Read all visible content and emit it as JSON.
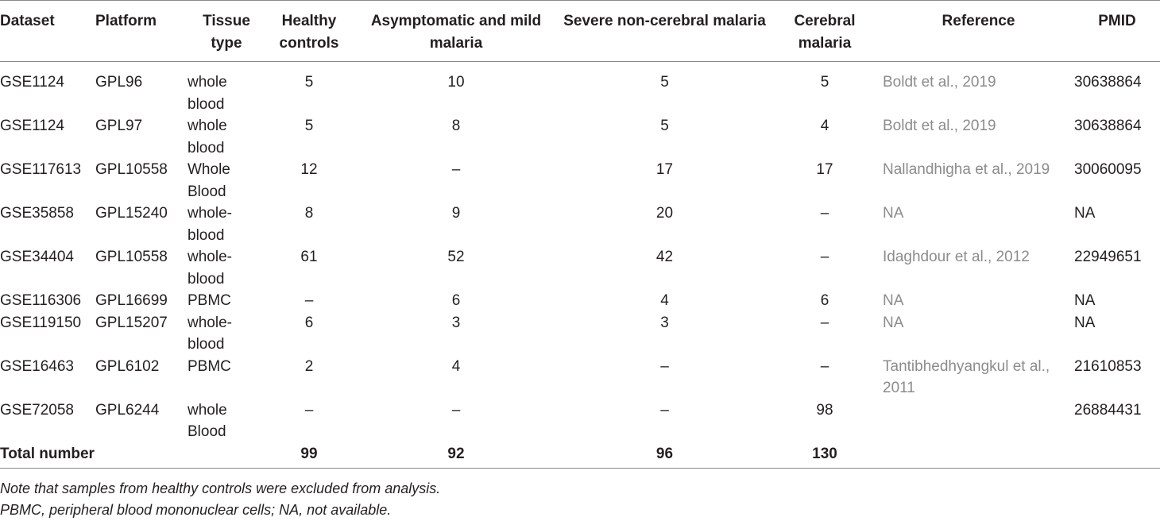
{
  "table": {
    "headers": {
      "dataset": "Dataset",
      "platform": "Platform",
      "tissue": "Tissue type",
      "healthy": "Healthy controls",
      "asymptomatic": "Asymptomatic and mild malaria",
      "severe": "Severe non-cerebral malaria",
      "cerebral": "Cerebral malaria",
      "reference": "Reference",
      "pmid": "PMID"
    },
    "rows": [
      {
        "dataset": "GSE1124",
        "platform": "GPL96",
        "tissue": "whole blood",
        "healthy": "5",
        "asymptomatic": "10",
        "severe": "5",
        "cerebral": "5",
        "reference": "Boldt et al., 2019",
        "pmid": "30638864"
      },
      {
        "dataset": "GSE1124",
        "platform": "GPL97",
        "tissue": "whole blood",
        "healthy": "5",
        "asymptomatic": "8",
        "severe": "5",
        "cerebral": "4",
        "reference": "Boldt et al., 2019",
        "pmid": "30638864"
      },
      {
        "dataset": "GSE117613",
        "platform": "GPL10558",
        "tissue": "Whole Blood",
        "healthy": "12",
        "asymptomatic": "–",
        "severe": "17",
        "cerebral": "17",
        "reference": "Nallandhigha et al., 2019",
        "pmid": "30060095"
      },
      {
        "dataset": "GSE35858",
        "platform": "GPL15240",
        "tissue": "whole-blood",
        "healthy": "8",
        "asymptomatic": "9",
        "severe": "20",
        "cerebral": "–",
        "reference": "NA",
        "pmid": "NA"
      },
      {
        "dataset": "GSE34404",
        "platform": "GPL10558",
        "tissue": "whole-blood",
        "healthy": "61",
        "asymptomatic": "52",
        "severe": "42",
        "cerebral": "–",
        "reference": "Idaghdour et al., 2012",
        "pmid": "22949651"
      },
      {
        "dataset": "GSE116306",
        "platform": "GPL16699",
        "tissue": "PBMC",
        "healthy": "–",
        "asymptomatic": "6",
        "severe": "4",
        "cerebral": "6",
        "reference": "NA",
        "pmid": "NA"
      },
      {
        "dataset": "GSE119150",
        "platform": "GPL15207",
        "tissue": "whole-blood",
        "healthy": "6",
        "asymptomatic": "3",
        "severe": "3",
        "cerebral": "–",
        "reference": "NA",
        "pmid": "NA"
      },
      {
        "dataset": "GSE16463",
        "platform": "GPL6102",
        "tissue": "PBMC",
        "healthy": "2",
        "asymptomatic": "4",
        "severe": "–",
        "cerebral": "–",
        "reference": "Tantibhedhyangkul et al., 2011",
        "pmid": "21610853"
      },
      {
        "dataset": "GSE72058",
        "platform": "GPL6244",
        "tissue": "whole Blood",
        "healthy": "–",
        "asymptomatic": "–",
        "severe": "–",
        "cerebral": "98",
        "reference": "",
        "pmid": "26884431"
      }
    ],
    "total": {
      "label": "Total number",
      "healthy": "99",
      "asymptomatic": "92",
      "severe": "96",
      "cerebral": "130"
    }
  },
  "notes": [
    "Note that samples from healthy controls were excluded from analysis.",
    "PBMC, peripheral blood mononuclear cells; NA, not available."
  ]
}
